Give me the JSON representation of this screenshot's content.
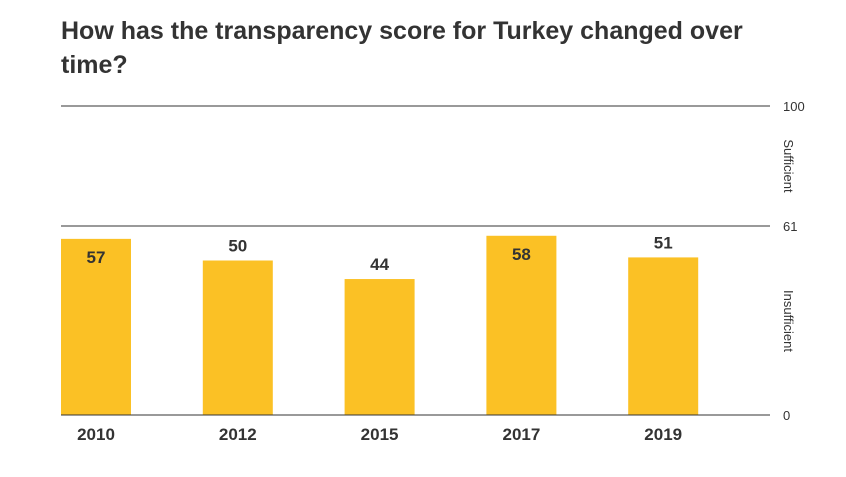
{
  "chart_data": {
    "type": "bar",
    "title": "How has the transparency score for Turkey changed over time?",
    "categories": [
      "2010",
      "2012",
      "2015",
      "2017",
      "2019"
    ],
    "values": [
      57,
      50,
      44,
      58,
      51
    ],
    "ylim": [
      0,
      100
    ],
    "threshold": 61,
    "y_ticks": [
      "0",
      "61",
      "100"
    ],
    "zones": [
      "Sufficient",
      "Insufficient"
    ],
    "bar_color": "#fbc125",
    "grid": true,
    "y_axis_position": "right"
  }
}
